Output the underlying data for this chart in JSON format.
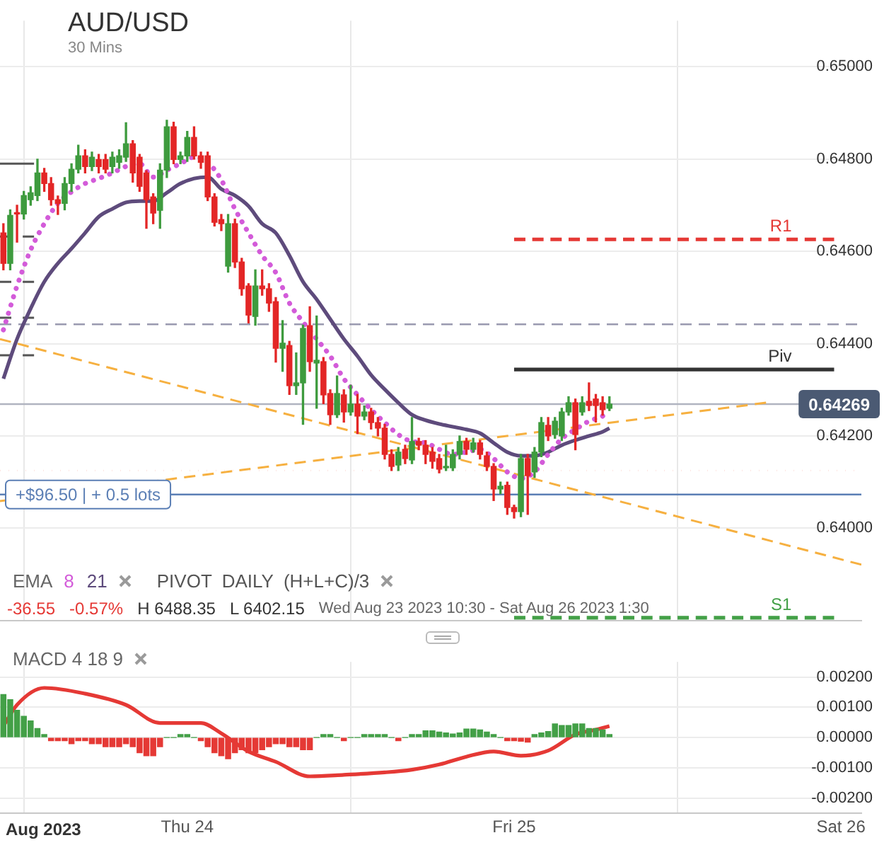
{
  "chart_data": [
    {
      "type": "candlestick",
      "title": "AUD/USD",
      "annotations": [
        "30 Mins",
        "EMA",
        "PIVOT  DAILY  (H+L+C)/3",
        "-36.55",
        "-0.57%",
        "H 6488.35",
        "L 6402.15",
        "Wed Aug 23 2023 10:30 - Sat Aug 26 2023 1:30"
      ],
      "x": [
        "2023-08-23T10:30",
        "2023-08-23T11:00",
        "2023-08-23T11:30",
        "2023-08-23T12:00",
        "2023-08-23T12:30",
        "2023-08-23T13:00",
        "2023-08-23T13:30",
        "2023-08-23T14:00",
        "2023-08-23T14:30",
        "2023-08-23T15:00",
        "2023-08-23T15:30",
        "2023-08-23T16:00",
        "2023-08-23T16:30",
        "2023-08-23T17:00",
        "2023-08-23T17:30",
        "2023-08-23T18:00",
        "2023-08-23T18:30",
        "2023-08-23T19:00",
        "2023-08-23T19:30",
        "2023-08-23T20:00",
        "2023-08-23T20:30",
        "2023-08-23T21:00",
        "2023-08-23T21:30",
        "2023-08-23T22:00",
        "2023-08-23T22:30",
        "2023-08-23T23:00",
        "2023-08-23T23:30",
        "2023-08-24T00:00",
        "2023-08-24T00:30",
        "2023-08-24T01:00",
        "2023-08-24T01:30",
        "2023-08-24T02:00",
        "2023-08-24T02:30",
        "2023-08-24T03:00",
        "2023-08-24T03:30",
        "2023-08-24T04:00",
        "2023-08-24T04:30",
        "2023-08-24T05:00",
        "2023-08-24T05:30",
        "2023-08-24T06:00",
        "2023-08-24T06:30",
        "2023-08-24T07:00",
        "2023-08-24T07:30",
        "2023-08-24T08:00",
        "2023-08-24T08:30",
        "2023-08-24T09:00",
        "2023-08-24T09:30",
        "2023-08-24T10:00",
        "2023-08-24T10:30",
        "2023-08-24T11:00",
        "2023-08-24T11:30",
        "2023-08-24T12:00",
        "2023-08-24T12:30",
        "2023-08-24T13:00",
        "2023-08-24T13:30",
        "2023-08-24T14:00",
        "2023-08-24T14:30",
        "2023-08-24T15:00",
        "2023-08-24T15:30",
        "2023-08-24T16:00",
        "2023-08-24T16:30",
        "2023-08-24T17:00",
        "2023-08-24T17:30",
        "2023-08-24T18:00",
        "2023-08-24T18:30",
        "2023-08-24T19:00",
        "2023-08-24T19:30",
        "2023-08-24T20:00",
        "2023-08-24T20:30",
        "2023-08-24T21:00",
        "2023-08-24T21:30",
        "2023-08-24T22:00",
        "2023-08-24T22:30",
        "2023-08-24T23:00",
        "2023-08-24T23:30",
        "2023-08-25T00:00",
        "2023-08-25T00:30",
        "2023-08-25T01:00",
        "2023-08-25T01:30",
        "2023-08-25T02:00",
        "2023-08-25T02:30",
        "2023-08-25T03:00",
        "2023-08-25T03:30",
        "2023-08-25T04:00",
        "2023-08-25T04:30",
        "2023-08-25T05:00",
        "2023-08-25T05:30",
        "2023-08-25T06:00",
        "2023-08-25T06:30",
        "2023-08-25T07:00"
      ],
      "ohlc": [
        [
          0.6464,
          0.6466,
          0.6456,
          0.64574
        ],
        [
          0.64574,
          0.6469,
          0.6456,
          0.64678
        ],
        [
          0.64683,
          0.647,
          0.6462,
          0.64681
        ],
        [
          0.64681,
          0.6473,
          0.6467,
          0.64721
        ],
        [
          0.64712,
          0.6474,
          0.647,
          0.64727
        ],
        [
          0.64721,
          0.648,
          0.6471,
          0.6477
        ],
        [
          0.6477,
          0.6478,
          0.6473,
          0.64747
        ],
        [
          0.64747,
          0.6476,
          0.647,
          0.64712
        ],
        [
          0.64712,
          0.6472,
          0.6468,
          0.64704
        ],
        [
          0.64704,
          0.6476,
          0.6469,
          0.64747
        ],
        [
          0.64747,
          0.6479,
          0.6473,
          0.64778
        ],
        [
          0.64778,
          0.6483,
          0.6477,
          0.64807
        ],
        [
          0.64807,
          0.6482,
          0.6477,
          0.64784
        ],
        [
          0.64784,
          0.64815,
          0.64775,
          0.64804
        ],
        [
          0.64799,
          0.6481,
          0.6477,
          0.64784
        ],
        [
          0.64799,
          0.6481,
          0.6477,
          0.64778
        ],
        [
          0.64784,
          0.64815,
          0.6477,
          0.64804
        ],
        [
          0.64793,
          0.6482,
          0.6478,
          0.64807
        ],
        [
          0.64804,
          0.64879,
          0.64795,
          0.64833
        ],
        [
          0.64833,
          0.6484,
          0.6475,
          0.6477
        ],
        [
          0.64804,
          0.6481,
          0.6473,
          0.64741
        ],
        [
          0.6477,
          0.64775,
          0.6465,
          0.64712
        ],
        [
          0.64718,
          0.64725,
          0.6466,
          0.64683
        ],
        [
          0.64689,
          0.6479,
          0.6465,
          0.64776
        ],
        [
          0.64776,
          0.64884,
          0.6476,
          0.6487
        ],
        [
          0.6487,
          0.6488,
          0.6479,
          0.64799
        ],
        [
          0.64799,
          0.64815,
          0.6479,
          0.64807
        ],
        [
          0.64807,
          0.6486,
          0.64795,
          0.64847
        ],
        [
          0.64847,
          0.6487,
          0.648,
          0.64807
        ],
        [
          0.64807,
          0.64815,
          0.6478,
          0.64793
        ],
        [
          0.64807,
          0.64815,
          0.6471,
          0.64718
        ],
        [
          0.64718,
          0.64725,
          0.64655,
          0.64663
        ],
        [
          0.64669,
          0.6468,
          0.64645,
          0.6466
        ],
        [
          0.64568,
          0.6468,
          0.64555,
          0.6466
        ],
        [
          0.6466,
          0.6467,
          0.64565,
          0.64577
        ],
        [
          0.64577,
          0.64585,
          0.64505,
          0.64519
        ],
        [
          0.64525,
          0.6453,
          0.64445,
          0.64462
        ],
        [
          0.64459,
          0.6456,
          0.6444,
          0.64525
        ],
        [
          0.64525,
          0.6456,
          0.64505,
          0.64519
        ],
        [
          0.64519,
          0.6453,
          0.6447,
          0.64488
        ],
        [
          0.64491,
          0.645,
          0.6436,
          0.6439
        ],
        [
          0.6439,
          0.6445,
          0.6434,
          0.64401
        ],
        [
          0.64396,
          0.64405,
          0.6429,
          0.64309
        ],
        [
          0.64309,
          0.6438,
          0.6429,
          0.64315
        ],
        [
          0.64315,
          0.6444,
          0.64225,
          0.64433
        ],
        [
          0.64439,
          0.6448,
          0.6434,
          0.64361
        ],
        [
          0.64358,
          0.6446,
          0.6426,
          0.64364
        ],
        [
          0.64361,
          0.6437,
          0.6427,
          0.64289
        ],
        [
          0.64292,
          0.643,
          0.64225,
          0.64246
        ],
        [
          0.64246,
          0.6433,
          0.6424,
          0.64292
        ],
        [
          0.64289,
          0.643,
          0.6423,
          0.64252
        ],
        [
          0.64252,
          0.6431,
          0.64245,
          0.64269
        ],
        [
          0.64269,
          0.6429,
          0.64205,
          0.64243
        ],
        [
          0.64243,
          0.64265,
          0.64235,
          0.64252
        ],
        [
          0.64252,
          0.6426,
          0.64215,
          0.64229
        ],
        [
          0.64229,
          0.6424,
          0.642,
          0.64217
        ],
        [
          0.64217,
          0.64225,
          0.6415,
          0.6416
        ],
        [
          0.6416,
          0.6417,
          0.64125,
          0.64134
        ],
        [
          0.64137,
          0.64175,
          0.64125,
          0.64165
        ],
        [
          0.64171,
          0.6418,
          0.6414,
          0.64151
        ],
        [
          0.64148,
          0.6424,
          0.6414,
          0.64188
        ],
        [
          0.64188,
          0.64195,
          0.6417,
          0.6418
        ],
        [
          0.6418,
          0.6419,
          0.6414,
          0.6416
        ],
        [
          0.64165,
          0.64175,
          0.6413,
          0.64145
        ],
        [
          0.64151,
          0.6416,
          0.6412,
          0.64128
        ],
        [
          0.64131,
          0.6418,
          0.64125,
          0.64134
        ],
        [
          0.64131,
          0.6417,
          0.64125,
          0.6416
        ],
        [
          0.6416,
          0.642,
          0.6415,
          0.64188
        ],
        [
          0.64188,
          0.64195,
          0.6416,
          0.64171
        ],
        [
          0.64171,
          0.64195,
          0.64165,
          0.64185
        ],
        [
          0.64185,
          0.6419,
          0.6415,
          0.6416
        ],
        [
          0.64157,
          0.64165,
          0.64125,
          0.64134
        ],
        [
          0.64134,
          0.6414,
          0.6406,
          0.64085
        ],
        [
          0.64085,
          0.641,
          0.64075,
          0.64091
        ],
        [
          0.64093,
          0.641,
          0.6403,
          0.64045
        ],
        [
          0.64045,
          0.6405,
          0.64022,
          0.64036
        ],
        [
          0.64036,
          0.6416,
          0.64025,
          0.64151
        ],
        [
          0.64151,
          0.6416,
          0.6403,
          0.64114
        ],
        [
          0.64122,
          0.64175,
          0.6411,
          0.64165
        ],
        [
          0.64165,
          0.6424,
          0.64155,
          0.64229
        ],
        [
          0.64223,
          0.6424,
          0.6419,
          0.642
        ],
        [
          0.64203,
          0.6424,
          0.64195,
          0.64232
        ],
        [
          0.642,
          0.6426,
          0.6419,
          0.64252
        ],
        [
          0.64252,
          0.64285,
          0.64245,
          0.64272
        ],
        [
          0.64272,
          0.6428,
          0.6417,
          0.64203
        ],
        [
          0.64252,
          0.64285,
          0.64245,
          0.64272
        ],
        [
          0.64275,
          0.64315,
          0.64255,
          0.64266
        ],
        [
          0.6428,
          0.6429,
          0.6423,
          0.64266
        ],
        [
          0.64272,
          0.64285,
          0.64245,
          0.64257
        ],
        [
          0.6426,
          0.64285,
          0.64255,
          0.64269
        ]
      ],
      "series": [
        {
          "type": "line",
          "name": "8",
          "color": "#d35bd9",
          "line_style": "dotted",
          "x": [
            "2023-08-23T10:30",
            "2023-08-23T11:30",
            "2023-08-23T12:30",
            "2023-08-23T13:30",
            "2023-08-23T14:30",
            "2023-08-23T15:30",
            "2023-08-23T16:30",
            "2023-08-23T17:30",
            "2023-08-23T18:30",
            "2023-08-23T19:30",
            "2023-08-23T20:30",
            "2023-08-23T21:30",
            "2023-08-23T22:30",
            "2023-08-23T23:30",
            "2023-08-24T00:30",
            "2023-08-24T01:30",
            "2023-08-24T02:30",
            "2023-08-24T03:30",
            "2023-08-24T04:30",
            "2023-08-24T05:30",
            "2023-08-24T06:30",
            "2023-08-24T07:30",
            "2023-08-24T08:30",
            "2023-08-24T09:30",
            "2023-08-24T10:30",
            "2023-08-24T11:30",
            "2023-08-24T12:30",
            "2023-08-24T13:30",
            "2023-08-24T14:30",
            "2023-08-24T15:30",
            "2023-08-24T16:30",
            "2023-08-24T17:30",
            "2023-08-24T18:30",
            "2023-08-24T19:30",
            "2023-08-24T20:30",
            "2023-08-24T21:30",
            "2023-08-24T22:30",
            "2023-08-24T23:30",
            "2023-08-25T00:30",
            "2023-08-25T01:30",
            "2023-08-25T02:30",
            "2023-08-25T03:30",
            "2023-08-25T04:30",
            "2023-08-25T05:30",
            "2023-08-25T06:30",
            "2023-08-25T07:00"
          ],
          "values": [
            0.6443,
            0.64525,
            0.64603,
            0.6466,
            0.64704,
            0.64729,
            0.64747,
            0.64758,
            0.6477,
            0.64784,
            0.6479,
            0.64761,
            0.64776,
            0.6479,
            0.64804,
            0.64793,
            0.64755,
            0.64692,
            0.6464,
            0.64591,
            0.64554,
            0.64488,
            0.64447,
            0.6441,
            0.64373,
            0.64324,
            0.64289,
            0.64257,
            0.64229,
            0.64203,
            0.64188,
            0.64185,
            0.64171,
            0.6416,
            0.64165,
            0.64171,
            0.64151,
            0.64122,
            0.64108,
            0.64122,
            0.6416,
            0.64194,
            0.64214,
            0.64232,
            0.64243,
            0.64252
          ]
        },
        {
          "type": "line",
          "name": "21",
          "color": "#5e4b7c",
          "line_style": "solid",
          "x": [
            "2023-08-23T10:30",
            "2023-08-23T11:30",
            "2023-08-23T12:30",
            "2023-08-23T13:30",
            "2023-08-23T14:30",
            "2023-08-23T15:30",
            "2023-08-23T16:30",
            "2023-08-23T17:30",
            "2023-08-23T18:30",
            "2023-08-23T19:30",
            "2023-08-23T20:30",
            "2023-08-23T21:30",
            "2023-08-23T22:30",
            "2023-08-23T23:30",
            "2023-08-24T00:30",
            "2023-08-24T01:30",
            "2023-08-24T02:30",
            "2023-08-24T03:30",
            "2023-08-24T04:30",
            "2023-08-24T05:30",
            "2023-08-24T06:30",
            "2023-08-24T07:30",
            "2023-08-24T08:30",
            "2023-08-24T09:30",
            "2023-08-24T10:30",
            "2023-08-24T11:30",
            "2023-08-24T12:30",
            "2023-08-24T13:30",
            "2023-08-24T14:30",
            "2023-08-24T15:30",
            "2023-08-24T16:30",
            "2023-08-24T17:30",
            "2023-08-24T18:30",
            "2023-08-24T19:30",
            "2023-08-24T20:30",
            "2023-08-24T21:30",
            "2023-08-24T22:30",
            "2023-08-24T23:30",
            "2023-08-25T00:30",
            "2023-08-25T01:30",
            "2023-08-25T02:30",
            "2023-08-25T03:30",
            "2023-08-25T04:30",
            "2023-08-25T05:30",
            "2023-08-25T06:30",
            "2023-08-25T07:00"
          ],
          "values": [
            0.64324,
            0.6441,
            0.64476,
            0.64534,
            0.64574,
            0.64606,
            0.6464,
            0.64675,
            0.64692,
            0.64706,
            0.64709,
            0.64709,
            0.64727,
            0.64747,
            0.64758,
            0.64761,
            0.64735,
            0.64721,
            0.64698,
            0.6466,
            0.6464,
            0.64591,
            0.64534,
            0.64496,
            0.64453,
            0.6441,
            0.64373,
            0.64332,
            0.64301,
            0.64272,
            0.64246,
            0.64234,
            0.64226,
            0.6422,
            0.64214,
            0.64206,
            0.64185,
            0.64165,
            0.64157,
            0.64157,
            0.64165,
            0.6418,
            0.64191,
            0.642,
            0.64209,
            0.64217
          ]
        },
        {
          "type": "line",
          "color": "#f6b040",
          "line_style": "dashed",
          "x": [
            "2023-08-23T10:15",
            "2023-08-26T01:30"
          ],
          "values": [
            0.6441,
            0.63921
          ]
        },
        {
          "type": "line",
          "color": "#f6b040",
          "line_style": "dashed",
          "x": [
            "2023-08-23T10:15",
            "2023-08-25T18:30"
          ],
          "values": [
            0.64059,
            0.64272
          ]
        },
        {
          "type": "line",
          "name": "R1",
          "color": "#e53935",
          "line_style": "dashed",
          "x": [
            "2023-08-25T00:00",
            "2023-08-25T23:30"
          ],
          "values": [
            0.64626,
            0.64626
          ]
        },
        {
          "type": "line",
          "name": "Piv",
          "color": "#333333",
          "line_style": "solid",
          "x": [
            "2023-08-25T00:00",
            "2023-08-25T23:30"
          ],
          "values": [
            0.64344,
            0.64344
          ]
        },
        {
          "type": "line",
          "name": "S1",
          "color": "#43a047",
          "line_style": "dashed",
          "x": [
            "2023-08-25T00:00",
            "2023-08-25T23:30"
          ],
          "values": [
            0.63806,
            0.63806
          ]
        },
        {
          "type": "line",
          "color": "#555555",
          "line_style": "solid",
          "x": [
            "2023-08-23T10:15",
            "2023-08-23T12:45"
          ],
          "values": [
            0.6479,
            0.6479
          ]
        },
        {
          "type": "line",
          "color": "#555555",
          "line_style": "dashed",
          "x": [
            "2023-08-23T10:15",
            "2023-08-23T12:45"
          ],
          "values": [
            0.64632,
            0.64632
          ]
        },
        {
          "type": "line",
          "color": "#555555",
          "line_style": "dashed",
          "x": [
            "2023-08-23T10:15",
            "2023-08-23T12:45"
          ],
          "values": [
            0.64534,
            0.64534
          ]
        },
        {
          "type": "line",
          "color": "#555555",
          "line_style": "dashed",
          "x": [
            "2023-08-23T10:15",
            "2023-08-23T12:45"
          ],
          "values": [
            0.64456,
            0.64456
          ]
        },
        {
          "type": "line",
          "color": "#555555",
          "line_style": "dashed",
          "x": [
            "2023-08-23T10:15",
            "2023-08-23T12:45"
          ],
          "values": [
            0.64375,
            0.64375
          ]
        }
      ],
      "ref_lines": [
        {
          "axis": "y",
          "value": 0.64442,
          "color": "#9a9ab0",
          "line_style": "dashed"
        },
        {
          "axis": "y",
          "value": 0.64269,
          "label": "0.64269",
          "color": "#b0b4c0",
          "line_style": "solid"
        },
        {
          "axis": "y",
          "value": 0.64125,
          "color": "#f08070",
          "line_style": "dotted"
        },
        {
          "axis": "y",
          "value": 0.64073,
          "label": "+$96.50 | + 0.5 lots",
          "color": "#5b7fb5",
          "line_style": "solid"
        }
      ],
      "xlim": [
        "2023-08-23T10:15",
        "2023-08-26T01:30"
      ],
      "xticks": [
        {
          "value": "2023-08-24T00:00",
          "label": null
        },
        {
          "value": "2023-08-25T00:00",
          "label": null
        },
        {
          "value": "2023-08-26T00:00",
          "label": null
        }
      ],
      "ylim": [
        0.638,
        0.651
      ],
      "yticks": [
        {
          "value": 0.64,
          "label": "0.64000"
        },
        {
          "value": 0.642,
          "label": "0.64200"
        },
        {
          "value": 0.644,
          "label": "0.64400"
        },
        {
          "value": 0.646,
          "label": "0.64600"
        },
        {
          "value": 0.648,
          "label": "0.64800"
        },
        {
          "value": 0.65,
          "label": "0.65000"
        }
      ],
      "tick_labels": "y",
      "grid": true,
      "legend": "bottom left"
    },
    {
      "type": "bar",
      "title": "MACD 4 18 9",
      "annotations": [
        "Aug 2023"
      ],
      "x": [
        "2023-08-23T10:30",
        "2023-08-23T11:00",
        "2023-08-23T11:30",
        "2023-08-23T12:00",
        "2023-08-23T12:30",
        "2023-08-23T13:00",
        "2023-08-23T13:30",
        "2023-08-23T14:00",
        "2023-08-23T14:30",
        "2023-08-23T15:00",
        "2023-08-23T15:30",
        "2023-08-23T16:00",
        "2023-08-23T16:30",
        "2023-08-23T17:00",
        "2023-08-23T17:30",
        "2023-08-23T18:00",
        "2023-08-23T18:30",
        "2023-08-23T19:00",
        "2023-08-23T19:30",
        "2023-08-23T20:00",
        "2023-08-23T20:30",
        "2023-08-23T21:00",
        "2023-08-23T21:30",
        "2023-08-23T22:00",
        "2023-08-23T22:30",
        "2023-08-23T23:00",
        "2023-08-23T23:30",
        "2023-08-24T00:00",
        "2023-08-24T00:30",
        "2023-08-24T01:00",
        "2023-08-24T01:30",
        "2023-08-24T02:00",
        "2023-08-24T02:30",
        "2023-08-24T03:00",
        "2023-08-24T03:30",
        "2023-08-24T04:00",
        "2023-08-24T04:30",
        "2023-08-24T05:00",
        "2023-08-24T05:30",
        "2023-08-24T06:00",
        "2023-08-24T06:30",
        "2023-08-24T07:00",
        "2023-08-24T07:30",
        "2023-08-24T08:00",
        "2023-08-24T08:30",
        "2023-08-24T09:00",
        "2023-08-24T09:30",
        "2023-08-24T10:00",
        "2023-08-24T10:30",
        "2023-08-24T11:00",
        "2023-08-24T11:30",
        "2023-08-24T12:00",
        "2023-08-24T12:30",
        "2023-08-24T13:00",
        "2023-08-24T13:30",
        "2023-08-24T14:00",
        "2023-08-24T14:30",
        "2023-08-24T15:00",
        "2023-08-24T15:30",
        "2023-08-24T16:00",
        "2023-08-24T16:30",
        "2023-08-24T17:00",
        "2023-08-24T17:30",
        "2023-08-24T18:00",
        "2023-08-24T18:30",
        "2023-08-24T19:00",
        "2023-08-24T19:30",
        "2023-08-24T20:00",
        "2023-08-24T20:30",
        "2023-08-24T21:00",
        "2023-08-24T21:30",
        "2023-08-24T22:00",
        "2023-08-24T22:30",
        "2023-08-24T23:00",
        "2023-08-24T23:30",
        "2023-08-25T00:00",
        "2023-08-25T00:30",
        "2023-08-25T01:00",
        "2023-08-25T01:30",
        "2023-08-25T02:00",
        "2023-08-25T02:30",
        "2023-08-25T03:00",
        "2023-08-25T03:30",
        "2023-08-25T04:00",
        "2023-08-25T04:30",
        "2023-08-25T05:00",
        "2023-08-25T05:30",
        "2023-08-25T06:00",
        "2023-08-25T06:30",
        "2023-08-25T07:00"
      ],
      "series": [
        {
          "type": "bar",
          "color": "#43a047",
          "values": [
            0.00142,
            0.00125,
            0.0009,
            0.0007,
            0.00055,
            0.0003,
            0.0001,
            null,
            null,
            null,
            null,
            null,
            null,
            null,
            null,
            null,
            null,
            null,
            null,
            null,
            null,
            null,
            null,
            null,
            0,
            0,
            0.0001,
            0.0001,
            0,
            null,
            null,
            null,
            null,
            null,
            null,
            null,
            null,
            null,
            null,
            null,
            null,
            null,
            null,
            null,
            null,
            null,
            0,
            0.0001,
            0.0001,
            0,
            null,
            0,
            0,
            0.0001,
            0.0001,
            0.0001,
            0.0001,
            0,
            null,
            0,
            0.0001,
            0.0001,
            0.00022,
            0.00022,
            0.00018,
            0.00015,
            0.00012,
            0.00015,
            0.00028,
            0.00028,
            0.00025,
            0.00018,
            0.0001,
            0,
            null,
            null,
            null,
            null,
            0.0001,
            0.00015,
            0.0002,
            0.00045,
            0.0004,
            0.0004,
            0.00045,
            0.00045,
            0.0003,
            0.0003,
            0.00025,
            0.0001
          ]
        },
        {
          "type": "bar",
          "color": "#e53935",
          "values": [
            null,
            null,
            null,
            null,
            null,
            null,
            null,
            -0.0001,
            -0.0001,
            -0.0001,
            -0.0002,
            -0.0001,
            -0.0001,
            -0.0002,
            -0.0002,
            -0.0003,
            -0.0003,
            -0.0003,
            -0.0002,
            -0.0003,
            -0.0005,
            -0.0006,
            -0.0006,
            -0.0003,
            null,
            null,
            null,
            null,
            null,
            -0.0001,
            -0.0003,
            -0.0005,
            -0.0006,
            -0.0007,
            -0.0005,
            -0.0004,
            -0.0005,
            -0.0005,
            -0.0004,
            -0.0003,
            -0.0002,
            -0.0002,
            -0.0003,
            -0.0003,
            -0.0004,
            -0.0004,
            null,
            null,
            null,
            null,
            -0.0001,
            null,
            null,
            null,
            null,
            null,
            null,
            null,
            -0.0001,
            null,
            null,
            null,
            null,
            null,
            null,
            null,
            null,
            null,
            null,
            null,
            null,
            null,
            null,
            null,
            -0.0001,
            -0.0001,
            -0.00012,
            -0.00015,
            null,
            null,
            null,
            null,
            null,
            null,
            null,
            null,
            null,
            null,
            null,
            null
          ]
        },
        {
          "type": "line",
          "color": "#e53935",
          "line_style": "solid",
          "x": [
            "2023-08-23T10:30",
            "2023-08-23T11:30",
            "2023-08-23T13:30",
            "2023-08-23T16:30",
            "2023-08-23T19:30",
            "2023-08-23T22:00",
            "2023-08-24T01:00",
            "2023-08-24T02:30",
            "2023-08-24T04:30",
            "2023-08-24T06:30",
            "2023-08-24T09:00",
            "2023-08-24T11:30",
            "2023-08-24T14:30",
            "2023-08-24T16:30",
            "2023-08-24T18:30",
            "2023-08-24T20:30",
            "2023-08-24T22:30",
            "2023-08-25T00:30",
            "2023-08-25T02:30",
            "2023-08-25T04:30",
            "2023-08-25T06:00",
            "2023-08-25T07:00"
          ],
          "values": [
            0.00038,
            0.00108,
            0.00164,
            0.00145,
            0.00108,
            0.00048,
            0.00048,
            0.00014,
            -0.00046,
            -0.0008,
            -0.00128,
            -0.00123,
            -0.00115,
            -0.00106,
            -0.00089,
            -0.00063,
            -0.00046,
            -0.0006,
            -0.00043,
            0.0001,
            0.00026,
            0.00038
          ]
        }
      ],
      "xlim": [
        "2023-08-23T10:15",
        "2023-08-26T01:30"
      ],
      "xticks": [
        {
          "value": "2023-08-24T00:00",
          "label": "Thu 24"
        },
        {
          "value": "2023-08-25T00:00",
          "label": "Fri 25"
        },
        {
          "value": "2023-08-26T00:00",
          "label": "Sat 26"
        }
      ],
      "ylim": [
        -0.0025,
        0.0025
      ],
      "yticks": [
        {
          "value": -0.002,
          "label": "-0.00200"
        },
        {
          "value": -0.001,
          "label": "-0.00100"
        },
        {
          "value": 0,
          "label": "0.00000"
        },
        {
          "value": 0.001,
          "label": "0.00100"
        },
        {
          "value": 0.002,
          "label": "0.00200"
        }
      ],
      "grid": true
    }
  ]
}
